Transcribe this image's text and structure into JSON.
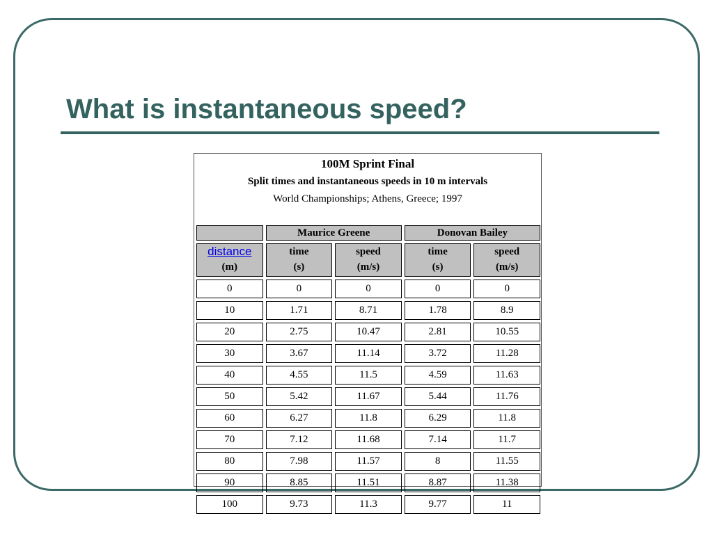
{
  "slide": {
    "title": "What is instantaneous speed?"
  },
  "table": {
    "caption_title": "100M Sprint Final",
    "caption_subtitle": "Split times and instantaneous speeds in 10 m intervals",
    "caption_event": "World Championships; Athens, Greece; 1997",
    "athletes": [
      "Maurice Greene",
      "Donovan Bailey"
    ],
    "distance_link": "distance",
    "distance_unit": "(m)",
    "time_label": "time",
    "time_unit": "(s)",
    "speed_label": "speed",
    "speed_unit": "(m/s)",
    "rows": [
      [
        "0",
        "0",
        "0",
        "0",
        "0"
      ],
      [
        "10",
        "1.71",
        "8.71",
        "1.78",
        "8.9"
      ],
      [
        "20",
        "2.75",
        "10.47",
        "2.81",
        "10.55"
      ],
      [
        "30",
        "3.67",
        "11.14",
        "3.72",
        "11.28"
      ],
      [
        "40",
        "4.55",
        "11.5",
        "4.59",
        "11.63"
      ],
      [
        "50",
        "5.42",
        "11.67",
        "5.44",
        "11.76"
      ],
      [
        "60",
        "6.27",
        "11.8",
        "6.29",
        "11.8"
      ],
      [
        "70",
        "7.12",
        "11.68",
        "7.14",
        "11.7"
      ],
      [
        "80",
        "7.98",
        "11.57",
        "8",
        "11.55"
      ],
      [
        "90",
        "8.85",
        "11.51",
        "8.87",
        "11.38"
      ],
      [
        "100",
        "9.73",
        "11.3",
        "9.77",
        "11"
      ]
    ]
  },
  "colors": {
    "accent": "#33625f",
    "frame": "#3b6967",
    "header_bg": "#c0c0c0",
    "link": "#0000ee"
  }
}
